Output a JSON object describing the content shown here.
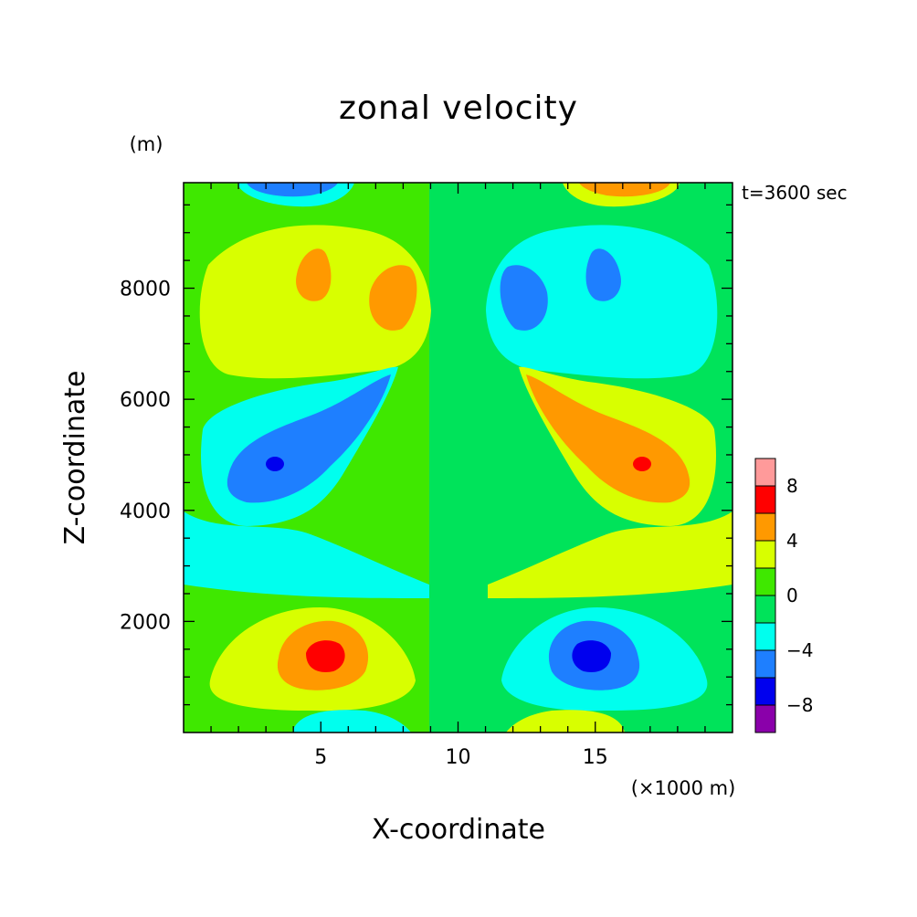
{
  "chart_data": {
    "type": "heatmap",
    "title": "zonal velocity",
    "xlabel": "X-coordinate",
    "ylabel": "Z-coordinate",
    "x_unit": "(×1000 m)",
    "y_unit": "(m)",
    "annotation": "t=3600 sec",
    "xlim": [
      0,
      20
    ],
    "ylim": [
      0,
      9900
    ],
    "x_ticks": [
      "5",
      "10",
      "15"
    ],
    "y_ticks": [
      "2000",
      "4000",
      "6000",
      "8000"
    ],
    "colorbar": {
      "levels": [
        -10,
        -8,
        -6,
        -4,
        -2,
        0,
        2,
        4,
        6,
        8,
        10
      ],
      "labels": [
        "8",
        "4",
        "0",
        "−4",
        "−8"
      ],
      "colors": [
        "#8a00aa",
        "#0000ee",
        "#1e7fff",
        "#00ffee",
        "#00e35a",
        "#3fe800",
        "#d8ff00",
        "#ff9900",
        "#ff0000",
        "#ff9a9a"
      ]
    },
    "features": [
      {
        "x": 5.0,
        "z": 1400,
        "value": 7
      },
      {
        "x": 15.0,
        "z": 1400,
        "value": -7
      },
      {
        "x": 3.4,
        "z": 4900,
        "value": -7
      },
      {
        "x": 16.6,
        "z": 4900,
        "value": 7
      },
      {
        "x": 4.8,
        "z": 8200,
        "value": 5
      },
      {
        "x": 7.6,
        "z": 7800,
        "value": 5
      },
      {
        "x": 15.2,
        "z": 8200,
        "value": -5
      },
      {
        "x": 12.4,
        "z": 7800,
        "value": -5
      },
      {
        "x": 5.0,
        "z": 9800,
        "value": -6
      },
      {
        "x": 15.0,
        "z": 9800,
        "value": 6
      },
      {
        "x": 5.0,
        "z": 200,
        "value": -3
      },
      {
        "x": 15.0,
        "z": 200,
        "value": 3
      }
    ]
  }
}
